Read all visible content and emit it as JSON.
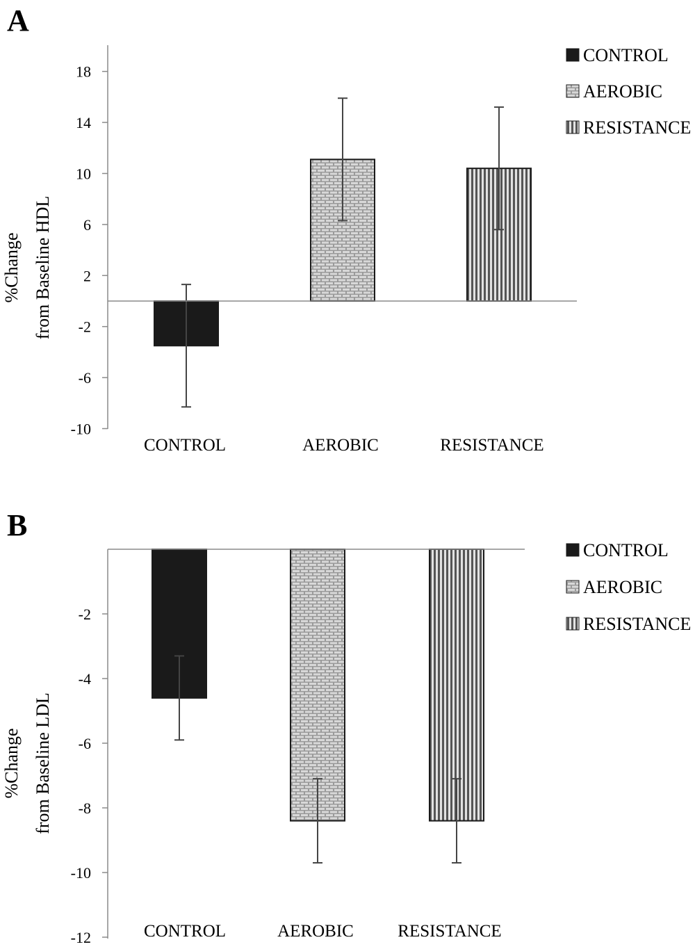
{
  "colors": {
    "control": "#1a1a1a",
    "axis": "#8a8a8a",
    "bar_edge": "#1a1a1a",
    "error": "#444444"
  },
  "chart_data": [
    {
      "panel_label": "A",
      "type": "bar",
      "ylabel_lines": [
        "%Change",
        "from Baseline HDL"
      ],
      "categories": [
        "CONTROL",
        "AEROBIC",
        "RESISTANCE"
      ],
      "values": [
        -3.5,
        11.1,
        10.4
      ],
      "error": [
        4.8,
        4.8,
        4.8
      ],
      "patterns": [
        "solid",
        "brick",
        "vertical-lines"
      ],
      "yticks": [
        "18",
        "14",
        "10",
        "6",
        "2",
        "-2",
        "-6",
        "-10"
      ],
      "ytick_values": [
        18,
        14,
        10,
        6,
        2,
        -2,
        -6,
        -10
      ],
      "ylim": [
        -10,
        20
      ],
      "legend": [
        "CONTROL",
        "AEROBIC",
        "RESISTANCE"
      ],
      "legend_position": "top-right",
      "grid": false
    },
    {
      "panel_label": "B",
      "type": "bar",
      "ylabel_lines": [
        "%Change",
        "from Baseline LDL"
      ],
      "categories": [
        "CONTROL",
        "AEROBIC",
        "RESISTANCE"
      ],
      "values": [
        -4.6,
        -8.4,
        -8.4
      ],
      "error": [
        1.3,
        1.3,
        1.3
      ],
      "patterns": [
        "solid",
        "brick",
        "vertical-lines"
      ],
      "yticks": [
        "-2",
        "-4",
        "-6",
        "-8",
        "-10",
        "-12"
      ],
      "ytick_values": [
        -2,
        -4,
        -6,
        -8,
        -10,
        -12
      ],
      "ylim": [
        -12,
        0
      ],
      "legend": [
        "CONTROL",
        "AEROBIC",
        "RESISTANCE"
      ],
      "legend_position": "top-right",
      "grid": false
    }
  ]
}
